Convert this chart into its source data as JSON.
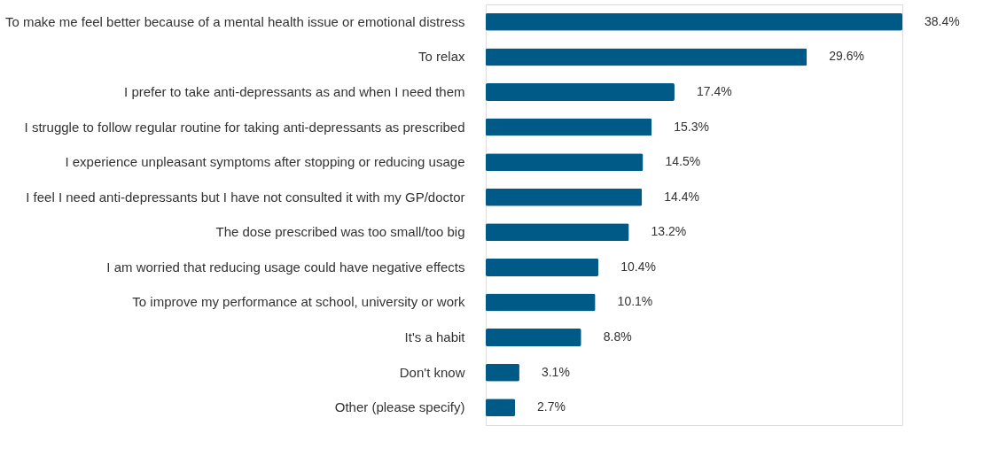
{
  "chart_data": {
    "type": "bar",
    "orientation": "horizontal",
    "categories": [
      "To make me feel better because of a mental health issue or emotional distress",
      "To relax",
      "I prefer to take anti-depressants as and when I need them",
      "I struggle to follow regular routine for taking anti-depressants as prescribed",
      "I experience unpleasant symptoms after stopping or reducing usage",
      "I feel I need anti-depressants but I have not consulted it with my GP/doctor",
      "The dose prescribed was too small/too big",
      "I am worried that reducing usage could have negative effects",
      "To improve my performance at school, university or work",
      "It's a habit",
      "Don't know",
      "Other (please specify)"
    ],
    "values": [
      38.4,
      29.6,
      17.4,
      15.3,
      14.5,
      14.4,
      13.2,
      10.4,
      10.1,
      8.8,
      3.1,
      2.7
    ],
    "value_labels": [
      "38.4%",
      "29.6%",
      "17.4%",
      "15.3%",
      "14.5%",
      "14.4%",
      "13.2%",
      "10.4%",
      "10.1%",
      "8.8%",
      "3.1%",
      "2.7%"
    ],
    "color": "#005a87"
  }
}
